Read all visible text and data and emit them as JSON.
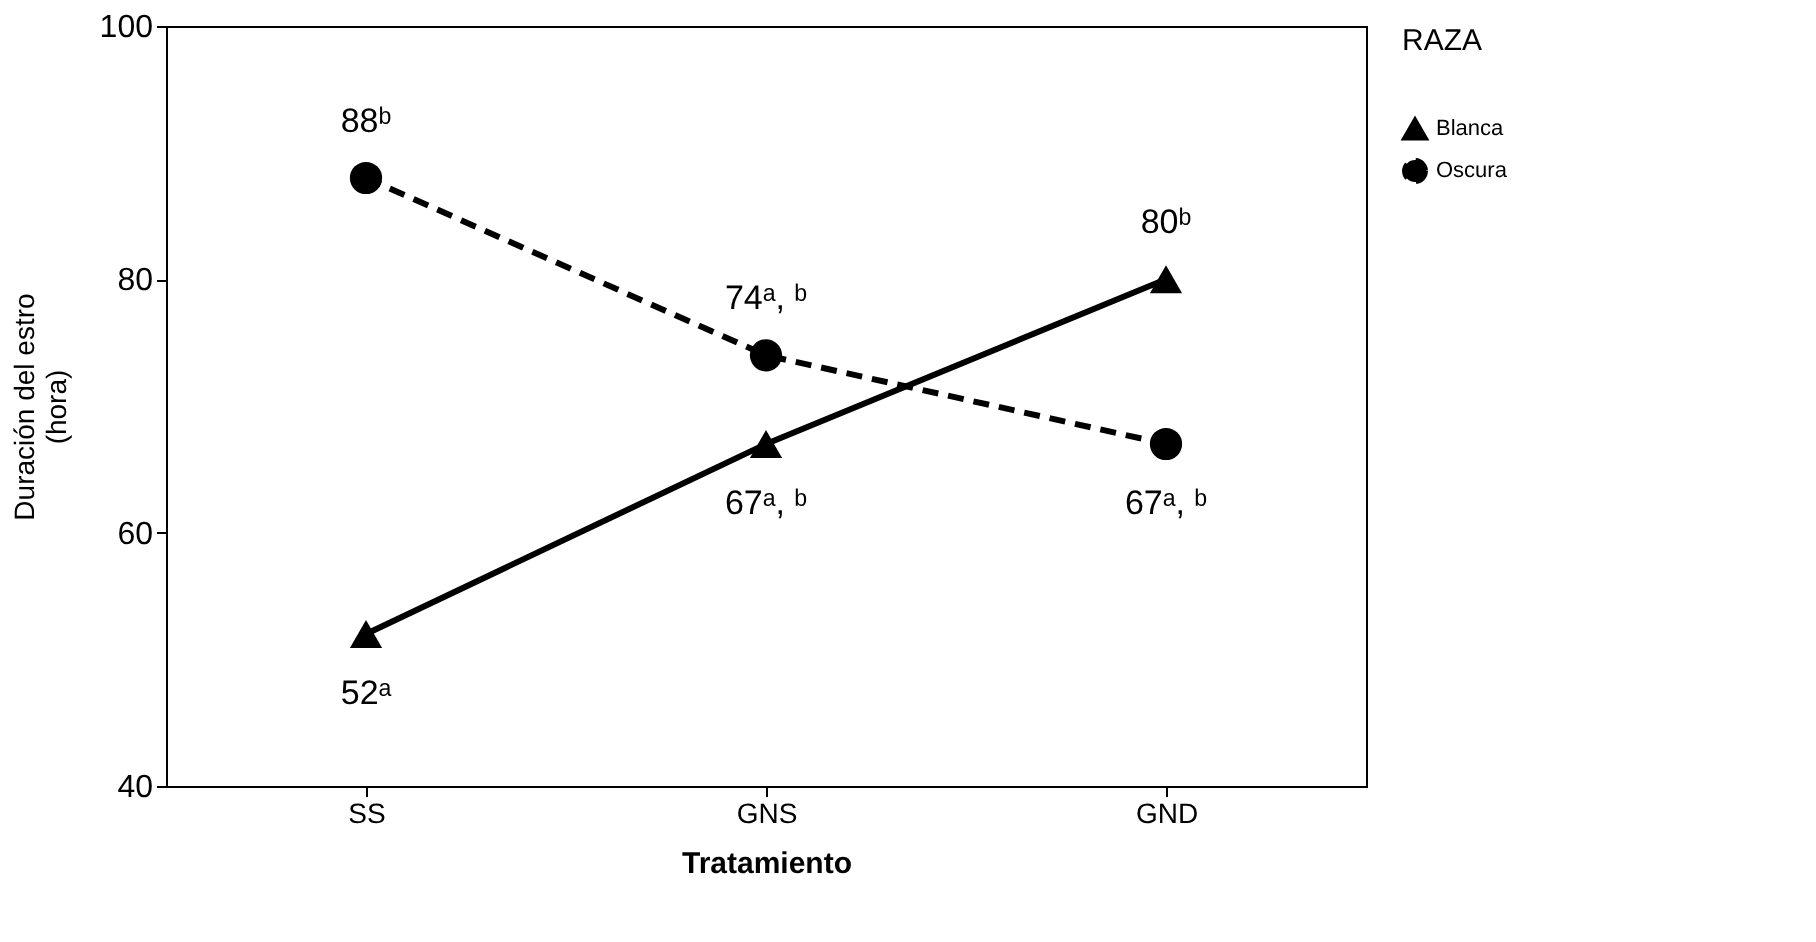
{
  "chart_data": {
    "type": "line",
    "categories": [
      "SS",
      "GNS",
      "GND"
    ],
    "xlabel": "Tratamiento",
    "ylabel": "Duración del estro\n(hora)",
    "legend_title": "RAZA",
    "series": [
      {
        "name": "Blanca",
        "color": "#000000",
        "values": [
          52,
          67,
          80
        ],
        "marker": "triangle",
        "line_style": "solid",
        "value_labels": [
          "52ᵃ",
          "67ᵃ, ᵇ",
          "80ᵇ"
        ]
      },
      {
        "name": "Oscura",
        "color": "#000000",
        "values": [
          88,
          74,
          67
        ],
        "marker": "circle",
        "line_style": "dashed",
        "value_labels": [
          "88ᵇ",
          "74ᵃ, ᵇ",
          "67ᵃ, ᵇ"
        ]
      }
    ],
    "ylim": [
      40,
      100
    ],
    "yticks": [
      40,
      60,
      80,
      100
    ],
    "grid": false,
    "legend": "right"
  }
}
